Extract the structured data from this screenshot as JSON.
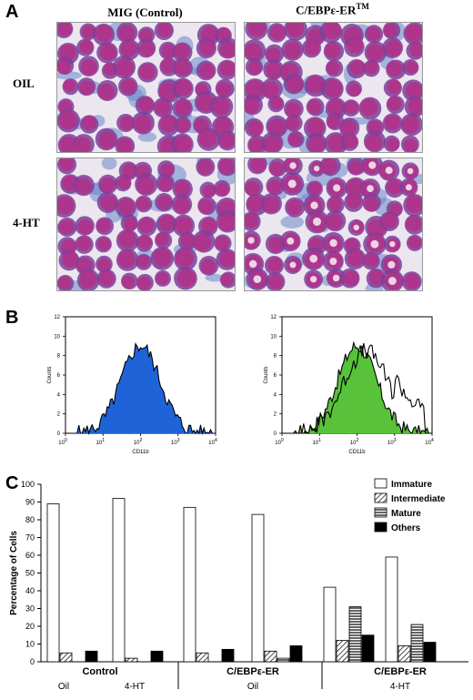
{
  "panelA": {
    "letter": "A",
    "col_labels": [
      "MIG (Control)",
      "C/EBPε-ER"
    ],
    "col2_superscript": "TM",
    "row_labels": [
      "OIL",
      "4-HT"
    ]
  },
  "panelB": {
    "letter": "B",
    "histograms": [
      {
        "ylabel": "Counts",
        "xlabel": "CD11b",
        "yticks": [
          "0",
          "2",
          "4",
          "6",
          "8",
          "10",
          "12"
        ],
        "xticks_base": [
          "10",
          "10",
          "10",
          "10",
          "10"
        ],
        "xticks_exp": [
          "0",
          "1",
          "2",
          "3",
          "4"
        ],
        "fill": "#1e64d8",
        "fill_name": "blue"
      },
      {
        "ylabel": "Counts",
        "xlabel": "CD11b",
        "yticks": [
          "0",
          "2",
          "4",
          "6",
          "8",
          "10",
          "12"
        ],
        "xticks_base": [
          "10",
          "10",
          "10",
          "10",
          "10"
        ],
        "xticks_exp": [
          "0",
          "1",
          "2",
          "3",
          "4"
        ],
        "fill": "#58c23a",
        "fill_name": "green"
      }
    ]
  },
  "panelC": {
    "letter": "C",
    "chart_data": {
      "type": "bar",
      "ylabel": "Percentage of Cells",
      "ylim": [
        0,
        100
      ],
      "yticks": [
        0,
        10,
        20,
        30,
        40,
        50,
        60,
        70,
        80,
        90,
        100
      ],
      "series": [
        {
          "name": "Immature",
          "pattern": "white",
          "values": [
            89,
            92,
            87,
            83,
            42,
            59
          ]
        },
        {
          "name": "Intermediate",
          "pattern": "hatch",
          "values": [
            5,
            2,
            5,
            6,
            12,
            9
          ]
        },
        {
          "name": "Mature",
          "pattern": "horizontal-lines",
          "values": [
            0,
            0,
            0,
            2,
            31,
            21
          ]
        },
        {
          "name": "Others",
          "pattern": "black",
          "values": [
            6,
            6,
            7,
            9,
            15,
            11
          ]
        }
      ],
      "group_sublabels": [
        "Oil",
        "4-HT",
        "Oil",
        "",
        "4-HT",
        ""
      ],
      "group_titles": [
        "Control",
        "C/EBPε-ER",
        "C/EBPε-ER"
      ],
      "legend_position": "top-right",
      "grid": false
    }
  },
  "colors": {
    "wright_stain_bg": "#ece6ef",
    "cell_purple": "#7b3f9a",
    "nucleus_magenta": "#b0328a",
    "blue_fill": "#1e64d8",
    "green_fill": "#58c23a"
  }
}
